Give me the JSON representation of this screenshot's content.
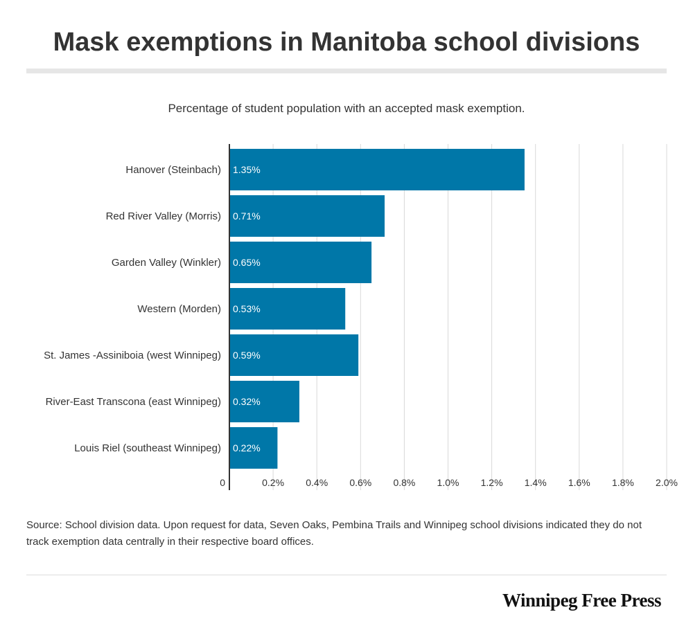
{
  "page": {
    "title": "Mask exemptions in Manitoba school divisions",
    "subtitle": "Percentage of student population with an accepted mask exemption.",
    "source": "Source: School division data. Upon request for data, Seven Oaks, Pembina Trails and Winnipeg school divisions indicated they do not track exemption data centrally in their respective board offices.",
    "brand": "Winnipeg Free Press"
  },
  "chart_data": {
    "type": "bar",
    "orientation": "horizontal",
    "title": "Mask exemptions in Manitoba school divisions",
    "subtitle": "Percentage of student population with an accepted mask exemption.",
    "categories": [
      "Hanover (Steinbach)",
      "Red River Valley (Morris)",
      "Garden Valley (Winkler)",
      "Western (Morden)",
      "St. James -Assiniboia (west Winnipeg)",
      "River-East Transcona (east Winnipeg)",
      "Louis Riel (southeast Winnipeg)"
    ],
    "values": [
      1.35,
      0.71,
      0.65,
      0.53,
      0.59,
      0.32,
      0.22
    ],
    "value_labels": [
      "1.35%",
      "0.71%",
      "0.65%",
      "0.53%",
      "0.59%",
      "0.32%",
      "0.22%"
    ],
    "xlim": [
      0,
      2.0
    ],
    "xticks": [
      0,
      0.2,
      0.4,
      0.6,
      0.8,
      1.0,
      1.2,
      1.4,
      1.6,
      1.8,
      2.0
    ],
    "xtick_labels": [
      "0",
      "0.2%",
      "0.4%",
      "0.6%",
      "0.8%",
      "1.0%",
      "1.2%",
      "1.4%",
      "1.6%",
      "1.8%",
      "2.0%"
    ],
    "xlabel": "",
    "ylabel": "",
    "grid": true,
    "bar_color": "#0077a8",
    "grid_color": "#d9d9d9"
  }
}
